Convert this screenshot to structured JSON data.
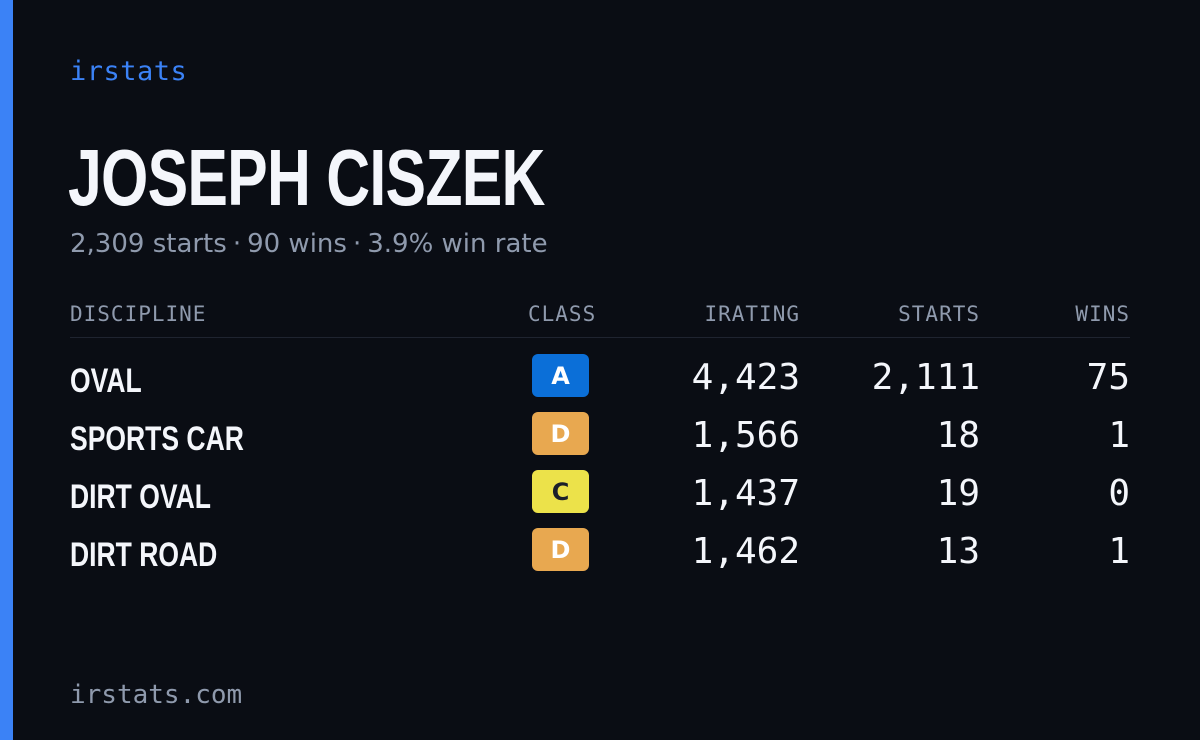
{
  "brand": "irstats",
  "driver": {
    "name": "JOSEPH CISZEK",
    "starts_text": "2,309 starts",
    "wins_text": "90 wins",
    "win_rate_text": "3.9% win rate",
    "separator": "·"
  },
  "table": {
    "headers": {
      "discipline": "DISCIPLINE",
      "class": "CLASS",
      "irating": "IRATING",
      "starts": "STARTS",
      "wins": "WINS"
    },
    "rows": [
      {
        "discipline": "OVAL",
        "class": "A",
        "class_color": "#0b6fd8",
        "class_text_color": "#ffffff",
        "irating": "4,423",
        "starts": "2,111",
        "wins": "75"
      },
      {
        "discipline": "SPORTS CAR",
        "class": "D",
        "class_color": "#e8a850",
        "class_text_color": "#ffffff",
        "irating": "1,566",
        "starts": "18",
        "wins": "1"
      },
      {
        "discipline": "DIRT OVAL",
        "class": "C",
        "class_color": "#ece24a",
        "class_text_color": "#1b1f2a",
        "irating": "1,437",
        "starts": "19",
        "wins": "0"
      },
      {
        "discipline": "DIRT ROAD",
        "class": "D",
        "class_color": "#e8a850",
        "class_text_color": "#ffffff",
        "irating": "1,462",
        "starts": "13",
        "wins": "1"
      }
    ]
  },
  "footer": {
    "domain": "irstats.com"
  },
  "colors": {
    "background": "#0a0d14",
    "accent": "#3b82f6",
    "muted_text": "#8f9aad",
    "primary_text": "#f4f6fb"
  }
}
